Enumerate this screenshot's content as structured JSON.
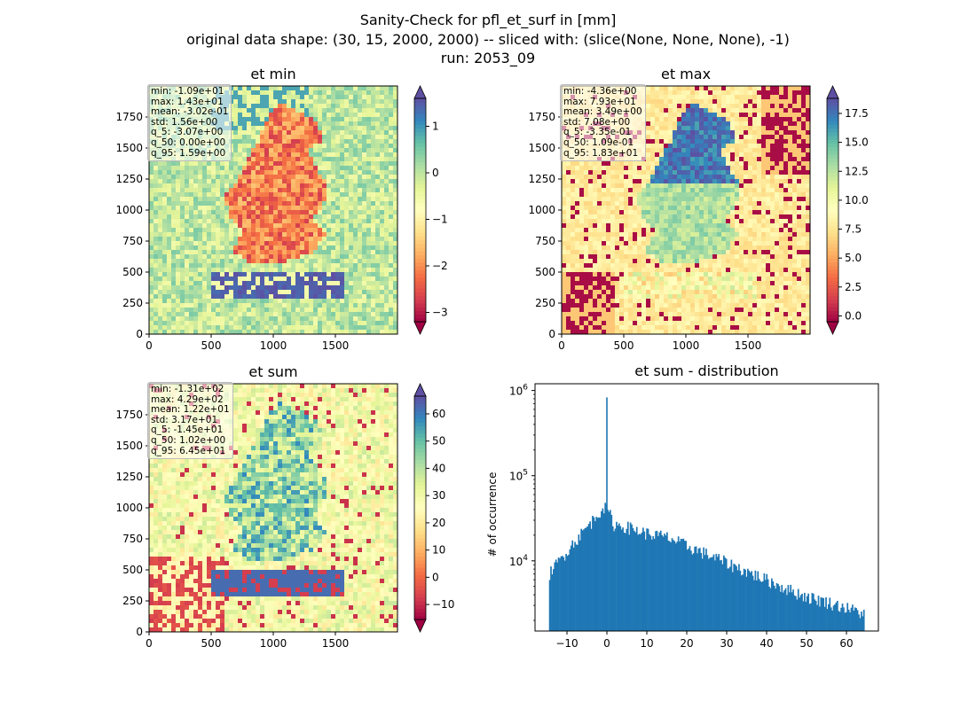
{
  "figure": {
    "title_lines": [
      "Sanity-Check for pfl_et_surf in [mm]",
      "original data shape: (30, 15, 2000, 2000) -- sliced with: (slice(None, None, None), -1)",
      "run: 2053_09"
    ]
  },
  "colors": {
    "histogram": "#1f77b4",
    "colormap": "Spectral",
    "colormap_stops": [
      "#9e0142",
      "#d53e4f",
      "#f46d43",
      "#fdae61",
      "#fee08b",
      "#ffffbf",
      "#e6f598",
      "#abdda4",
      "#66c2a5",
      "#3288bd",
      "#5e4fa2"
    ]
  },
  "chart_data": [
    {
      "type": "heatmap",
      "title": "et min",
      "xticks": [
        "0",
        "500",
        "1000",
        "1500"
      ],
      "yticks": [
        "0",
        "250",
        "500",
        "750",
        "1000",
        "1250",
        "1500",
        "1750"
      ],
      "xlim": [
        0,
        2000
      ],
      "ylim": [
        0,
        2000
      ],
      "colorbar": {
        "vmin": -3.2,
        "vmax": 1.6,
        "ticks": [
          -3,
          -2,
          -1,
          0,
          1
        ],
        "tick_labels": [
          "−3",
          "−2",
          "−1",
          "0",
          "1"
        ],
        "extend": "both"
      },
      "stats": [
        "min: -1.09e+01",
        "max: 1.43e+01",
        "mean: -3.02e-01",
        "std: 1.56e+00",
        "q_5: -3.07e+00",
        "q_50: 0.00e+00",
        "q_95: 1.59e+00"
      ],
      "stats_location": "upper-left"
    },
    {
      "type": "heatmap",
      "title": "et max",
      "xticks": [
        "0",
        "500",
        "1000",
        "1500"
      ],
      "yticks": [
        "0",
        "250",
        "500",
        "750",
        "1000",
        "1250",
        "1500",
        "1750"
      ],
      "xlim": [
        0,
        2000
      ],
      "ylim": [
        0,
        2000
      ],
      "colorbar": {
        "vmin": -0.5,
        "vmax": 18.8,
        "ticks": [
          0,
          2.5,
          5,
          7.5,
          10,
          12.5,
          15,
          17.5
        ],
        "tick_labels": [
          "0.0",
          "2.5",
          "5.0",
          "7.5",
          "10.0",
          "12.5",
          "15.0",
          "17.5"
        ],
        "extend": "both"
      },
      "stats": [
        "min: -4.36e+00",
        "max: 7.93e+01",
        "mean: 3.49e+00",
        "std: 7.08e+00",
        "q_5: -3.35e-01",
        "q_50: 1.09e-01",
        "q_95: 1.83e+01"
      ],
      "stats_location": "upper-left"
    },
    {
      "type": "heatmap",
      "title": "et sum",
      "xticks": [
        "0",
        "500",
        "1000",
        "1500"
      ],
      "yticks": [
        "0",
        "250",
        "500",
        "750",
        "1000",
        "1250",
        "1500",
        "1750"
      ],
      "xlim": [
        0,
        2000
      ],
      "ylim": [
        0,
        2000
      ],
      "colorbar": {
        "vmin": -15.5,
        "vmax": 66.5,
        "ticks": [
          -10,
          0,
          10,
          20,
          30,
          40,
          50,
          60
        ],
        "tick_labels": [
          "−10",
          "0",
          "10",
          "20",
          "30",
          "40",
          "50",
          "60"
        ],
        "extend": "both"
      },
      "stats": [
        "min: -1.31e+02",
        "max: 4.29e+02",
        "mean: 1.22e+01",
        "std: 3.17e+01",
        "q_5: -1.45e+01",
        "q_50: 1.02e+00",
        "q_95: 6.45e+01"
      ],
      "stats_location": "upper-left"
    },
    {
      "type": "bar",
      "title": "et sum - distribution",
      "xlabel": "",
      "ylabel": "# of occurrence",
      "yscale": "log",
      "xlim": [
        -18,
        68
      ],
      "ylim": [
        1500,
        1200000
      ],
      "xticks": [
        -10,
        0,
        10,
        20,
        30,
        40,
        50,
        60
      ],
      "xtick_labels": [
        "−10",
        "0",
        "10",
        "20",
        "30",
        "40",
        "50",
        "60"
      ],
      "yticks": [
        10000,
        100000,
        1000000
      ],
      "ytick_labels": [
        "10^4",
        "10^5",
        "10^6"
      ],
      "bin_start": -14.5,
      "bin_end": 64.5,
      "spikes": [
        {
          "x": 0,
          "count": 830000
        }
      ],
      "profile": [
        {
          "x": -14.5,
          "count": 7000
        },
        {
          "x": -12,
          "count": 10000
        },
        {
          "x": -9,
          "count": 15000
        },
        {
          "x": -6,
          "count": 22000
        },
        {
          "x": -3,
          "count": 32000
        },
        {
          "x": -1,
          "count": 43000
        },
        {
          "x": 0.5,
          "count": 38000
        },
        {
          "x": 1.5,
          "count": 27000
        },
        {
          "x": 5,
          "count": 25000
        },
        {
          "x": 10,
          "count": 21000
        },
        {
          "x": 15,
          "count": 19000
        },
        {
          "x": 20,
          "count": 15000
        },
        {
          "x": 25,
          "count": 12000
        },
        {
          "x": 30,
          "count": 9500
        },
        {
          "x": 35,
          "count": 7500
        },
        {
          "x": 40,
          "count": 6000
        },
        {
          "x": 45,
          "count": 4700
        },
        {
          "x": 50,
          "count": 3800
        },
        {
          "x": 55,
          "count": 3300
        },
        {
          "x": 60,
          "count": 2800
        },
        {
          "x": 64.5,
          "count": 2400
        }
      ]
    }
  ]
}
